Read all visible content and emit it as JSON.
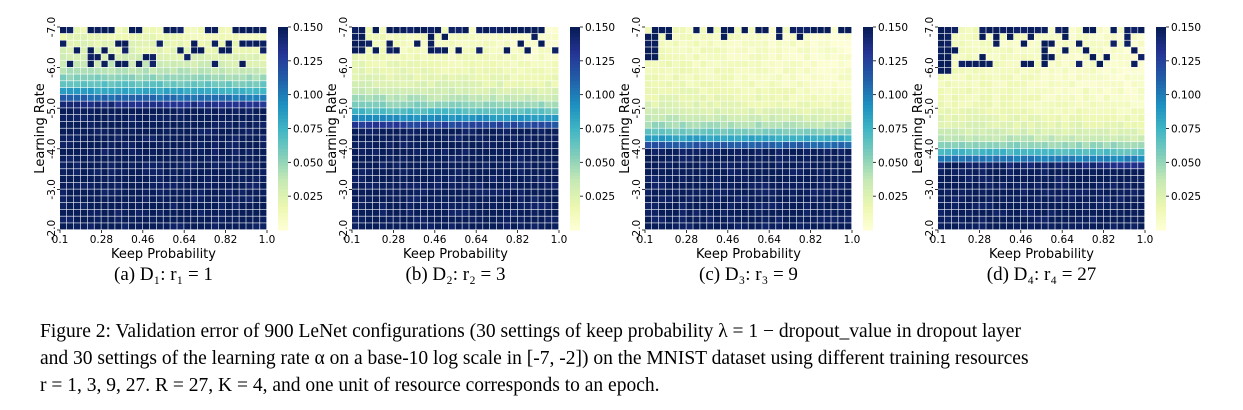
{
  "chart_data": [
    {
      "type": "heatmap",
      "panel_label": "(a) D₁: r₁ = 1",
      "xlabel": "Keep Probability",
      "ylabel": "Learning Rate",
      "x_ticks": [
        "0.1",
        "0.28",
        "0.46",
        "0.64",
        "0.82",
        "1.0"
      ],
      "y_ticks": [
        "-7.0",
        "-6.0",
        "-5.0",
        "-4.0",
        "-3.0",
        "-2.0"
      ],
      "x_range": [
        0.1,
        1.0
      ],
      "y_range": [
        -7.0,
        -2.0
      ],
      "grid_size": [
        30,
        30
      ],
      "colorbar_ticks": [
        "0.150",
        "0.125",
        "0.100",
        "0.075",
        "0.050",
        "0.025"
      ],
      "color_range": [
        0.0,
        0.15
      ],
      "pattern": {
        "lr_cut": -4.0,
        "width": 1.25,
        "diverge": [
          -2.9,
          -2.3
        ],
        "corner": 0
      }
    },
    {
      "type": "heatmap",
      "panel_label": "(b) D₂: r₂ = 3",
      "xlabel": "Keep Probability",
      "ylabel": "Learning Rate",
      "x_ticks": [
        "0.1",
        "0.28",
        "0.46",
        "0.64",
        "0.82",
        "1.0"
      ],
      "y_ticks": [
        "-7.0",
        "-6.0",
        "-5.0",
        "-4.0",
        "-3.0",
        "-2.0"
      ],
      "x_range": [
        0.1,
        1.0
      ],
      "y_range": [
        -7.0,
        -2.0
      ],
      "grid_size": [
        30,
        30
      ],
      "colorbar_ticks": [
        "0.150",
        "0.125",
        "0.100",
        "0.075",
        "0.050",
        "0.025"
      ],
      "color_range": [
        0.0,
        0.15
      ],
      "pattern": {
        "lr_cut": -4.55,
        "width": 1.05,
        "diverge": [
          -2.6,
          -2.15
        ],
        "corner": 3
      }
    },
    {
      "type": "heatmap",
      "panel_label": "(c) D₃: r₃ = 9",
      "xlabel": "Keep Probability",
      "ylabel": "Learning Rate",
      "x_ticks": [
        "0.1",
        "0.28",
        "0.46",
        "0.64",
        "0.82",
        "1.0"
      ],
      "y_ticks": [
        "-7.0",
        "-6.0",
        "-5.0",
        "-4.0",
        "-3.0",
        "-2.0"
      ],
      "x_range": [
        0.1,
        1.0
      ],
      "y_range": [
        -7.0,
        -2.0
      ],
      "grid_size": [
        30,
        30
      ],
      "colorbar_ticks": [
        "0.150",
        "0.125",
        "0.100",
        "0.075",
        "0.050",
        "0.025"
      ],
      "color_range": [
        0.0,
        0.15
      ],
      "pattern": {
        "lr_cut": -5.1,
        "width": 0.95,
        "diverge": [
          -2.3,
          -2.15
        ],
        "corner": 4
      }
    },
    {
      "type": "heatmap",
      "panel_label": "(d) D₄: r₄ = 27",
      "xlabel": "Keep Probability",
      "ylabel": "Learning Rate",
      "x_ticks": [
        "0.1",
        "0.28",
        "0.46",
        "0.64",
        "0.82",
        "1.0"
      ],
      "y_ticks": [
        "-7.0",
        "-6.0",
        "-5.0",
        "-4.0",
        "-3.0",
        "-2.0"
      ],
      "x_range": [
        0.1,
        1.0
      ],
      "y_range": [
        -7.0,
        -2.0
      ],
      "grid_size": [
        30,
        30
      ],
      "colorbar_ticks": [
        "0.150",
        "0.125",
        "0.100",
        "0.075",
        "0.050",
        "0.025"
      ],
      "color_range": [
        0.0,
        0.15
      ],
      "pattern": {
        "lr_cut": -5.5,
        "width": 0.9,
        "diverge": [
          -2.9,
          -2.15
        ],
        "corner": 6
      }
    }
  ],
  "colors": {
    "low": "#ffffd9",
    "mid": "#41b6c4",
    "high": "#081d58"
  },
  "caption": {
    "line1": "Figure 2: Validation error of 900 LeNet configurations (30 settings of keep probability λ = 1 − dropout_value in dropout layer",
    "line2": "and 30 settings of the learning rate α on a base-10 log scale in [-7, -2]) on the MNIST dataset using different training resources",
    "line3": "r = 1, 3, 9, 27. R = 27, K = 4, and one unit of resource corresponds to an epoch."
  }
}
